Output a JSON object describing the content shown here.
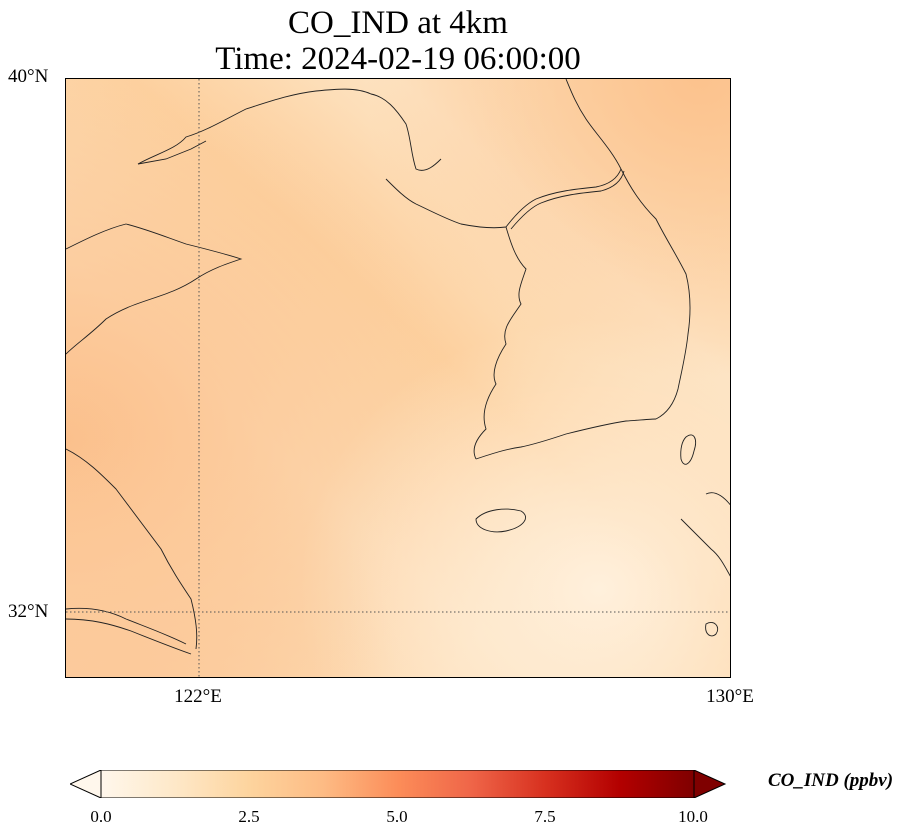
{
  "title": {
    "line1": "CO_IND at 4km",
    "line2": "Time: 2024-02-19 06:00:00"
  },
  "map": {
    "variable": "CO_IND",
    "level": "4km",
    "time": "2024-02-19 06:00:00",
    "extent": {
      "lon_min": 120,
      "lon_max": 130,
      "lat_min": 31,
      "lat_max": 40
    },
    "gridlines": {
      "lon": [
        122,
        130
      ],
      "lat": [
        32,
        40
      ],
      "style": "dotted"
    },
    "lat_labels": [
      "40°N",
      "32°N"
    ],
    "lon_labels": [
      "122°E",
      "130°E"
    ],
    "field_description_colors": {
      "low": "#fdebd1",
      "mid": "#fdd5a6",
      "high": "#fcc48e"
    }
  },
  "colorbar": {
    "label": "CO_IND (ppbv)",
    "min": 0.0,
    "max": 10.0,
    "ticks": [
      "0.0",
      "2.5",
      "5.0",
      "7.5",
      "10.0"
    ],
    "extend": "both",
    "colormap": "OrRd",
    "colors": [
      "#fff7ec",
      "#fee8c8",
      "#fdd49e",
      "#fdbb84",
      "#fc8d59",
      "#ef6548",
      "#d7301f",
      "#b30000",
      "#7f0000"
    ]
  }
}
